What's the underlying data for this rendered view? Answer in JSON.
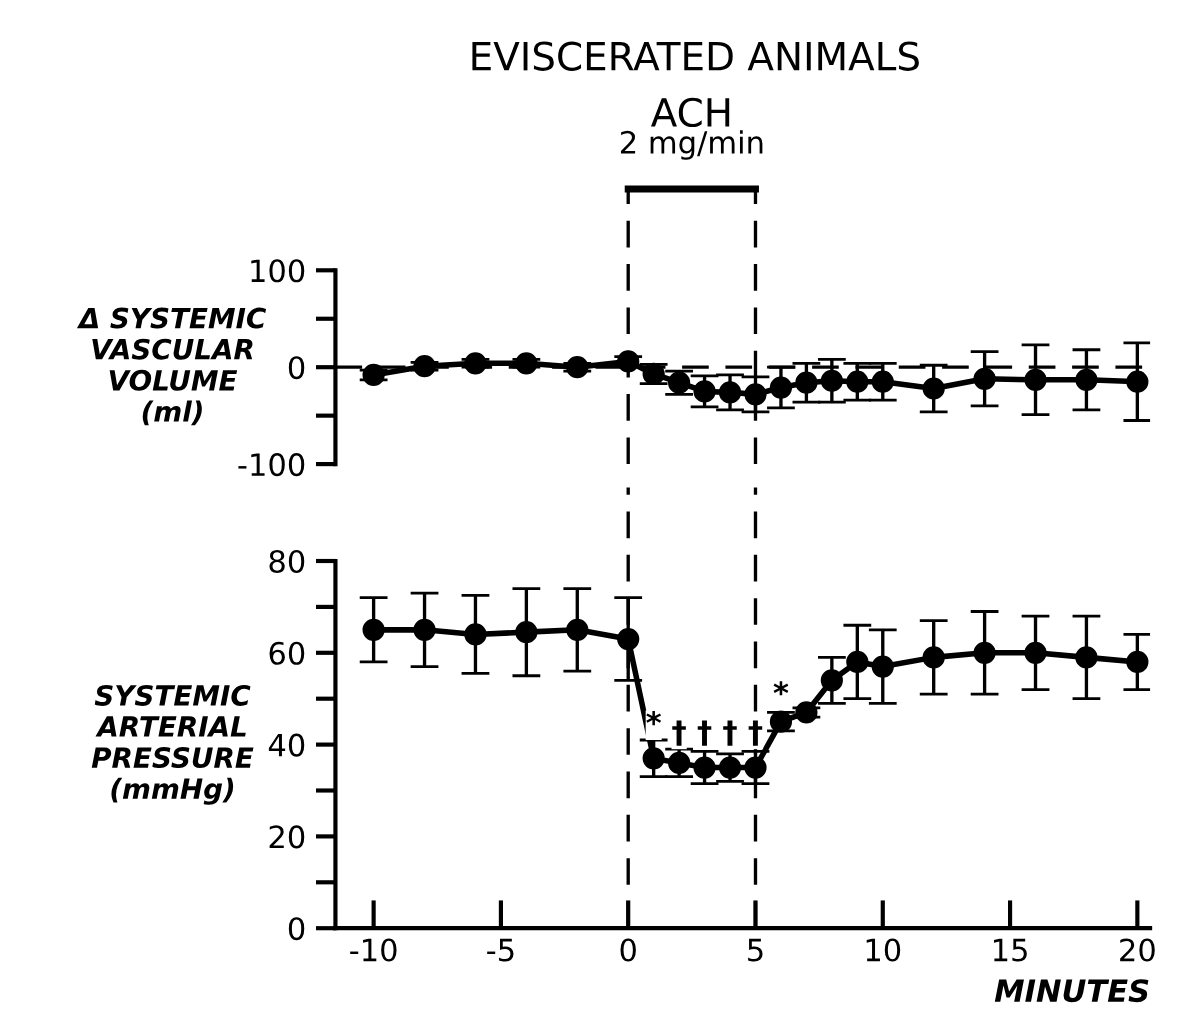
{
  "chart_data": [
    {
      "type": "line",
      "title": "EVISCERATED ANIMALS",
      "ylabel": "Δ SYSTEMIC\nVASCULAR\nVOLUME\n(ml)",
      "x": [
        -10,
        -8,
        -6,
        -4,
        -2,
        0,
        1,
        2,
        3,
        4,
        5,
        6,
        7,
        8,
        9,
        10,
        12,
        14,
        16,
        18,
        20
      ],
      "series": [
        {
          "color": "#000000",
          "values": [
            -8,
            1,
            4,
            4,
            0,
            6,
            -7,
            -16,
            -25,
            -26,
            -28,
            -21,
            -16,
            -14,
            -15,
            -15,
            -22,
            -12,
            -13,
            -13,
            -15
          ],
          "errors": [
            5,
            4,
            4,
            4,
            4,
            5,
            10,
            12,
            16,
            18,
            18,
            21,
            20,
            22,
            19,
            19,
            24,
            28,
            36,
            31,
            40
          ]
        }
      ],
      "xlim": [
        -11.5,
        20.5
      ],
      "ylim": [
        -100,
        100
      ],
      "yticks": [
        -100,
        {
          "value": -50,
          "label": null
        },
        0,
        {
          "value": 50,
          "label": null
        },
        100
      ],
      "tick_labels": "y",
      "marker": "circle",
      "line_style": "solid",
      "grid": false,
      "ref_lines": [
        {
          "axis": "x",
          "value": 0,
          "line_style": "dashed",
          "color": "#000000"
        },
        {
          "axis": "x",
          "value": 5,
          "line_style": "dashed",
          "color": "#000000"
        },
        {
          "axis": "y",
          "value": 0,
          "line_style": "dashed",
          "color": "#000000"
        }
      ],
      "annotations": [
        "ACH",
        "2 mg/min"
      ]
    },
    {
      "type": "line",
      "ylabel": "SYSTEMIC\nARTERIAL\nPRESSURE\n(mmHg)",
      "xlabel": "MINUTES",
      "x": [
        -10,
        -8,
        -6,
        -4,
        -2,
        0,
        1,
        2,
        3,
        4,
        5,
        6,
        7,
        8,
        9,
        10,
        12,
        14,
        16,
        18,
        20
      ],
      "series": [
        {
          "color": "#000000",
          "values": [
            65,
            65,
            64,
            64.5,
            65,
            63,
            37,
            36,
            35,
            35,
            35,
            45,
            47,
            54,
            58,
            57,
            59,
            60,
            60,
            59,
            58
          ],
          "errors": [
            7,
            8,
            8.5,
            9.5,
            9,
            9,
            4,
            3,
            3.5,
            3,
            3.5,
            2,
            1,
            5,
            8,
            8,
            8,
            9,
            8,
            9,
            6
          ]
        }
      ],
      "xlim": [
        -11.5,
        20.5
      ],
      "ylim": [
        0,
        80
      ],
      "xticks": [
        -10,
        -5,
        0,
        5,
        10,
        15,
        20
      ],
      "yticks": [
        0,
        {
          "value": 10,
          "label": null
        },
        20,
        {
          "value": 30,
          "label": null
        },
        40,
        {
          "value": 50,
          "label": null
        },
        60,
        {
          "value": 70,
          "label": null
        },
        80
      ],
      "marker": "circle",
      "line_style": "solid",
      "grid": false,
      "ref_lines": [
        {
          "axis": "x",
          "value": 0,
          "line_style": "dashed",
          "color": "#000000"
        },
        {
          "axis": "x",
          "value": 5,
          "line_style": "dashed",
          "color": "#000000"
        }
      ],
      "annotations": [
        {
          "text": "*",
          "x": 1,
          "y": 41
        },
        {
          "text": "†",
          "x": 2,
          "y": 39
        },
        {
          "text": "†",
          "x": 3,
          "y": 39
        },
        {
          "text": "†",
          "x": 4,
          "y": 39
        },
        {
          "text": "†",
          "x": 5,
          "y": 39
        },
        {
          "text": "*",
          "x": 6,
          "y": 47.5
        }
      ]
    }
  ]
}
